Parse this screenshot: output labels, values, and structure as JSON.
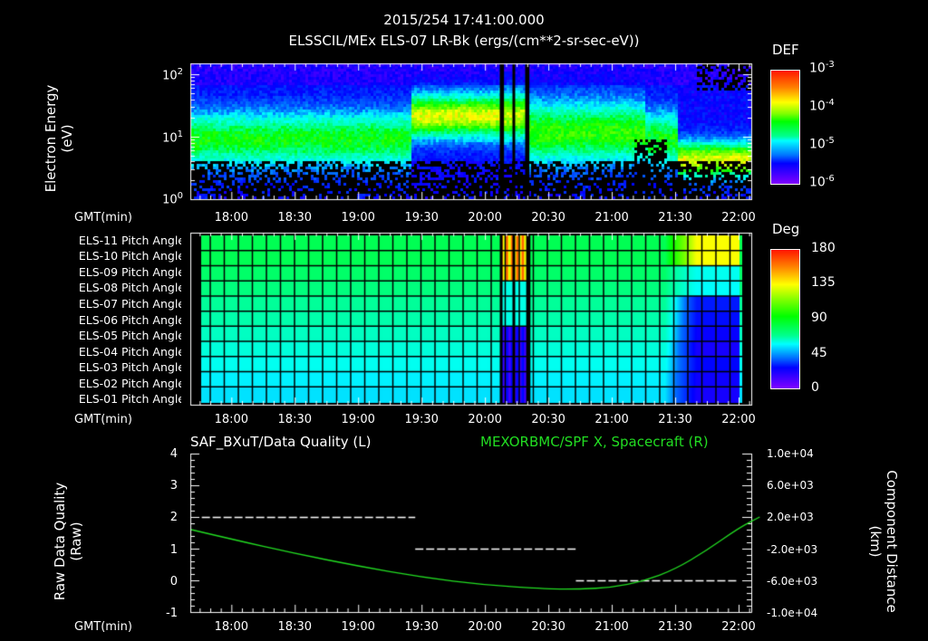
{
  "header": {
    "timestamp": "2015/254 17:41:00.000",
    "subtitle": "ELSSCIL/MEx ELS-07 LR-Bk  (ergs/(cm**2-sr-sec-eV))"
  },
  "time_axis": {
    "label": "GMT(min)",
    "ticks": [
      "18:00",
      "18:30",
      "19:00",
      "19:30",
      "20:00",
      "20:30",
      "21:00",
      "21:30",
      "22:00"
    ],
    "start_min": 1061,
    "end_min": 1326
  },
  "panel1": {
    "ylabel_line1": "Electron Energy",
    "ylabel_line2": "(eV)",
    "yticks": [
      {
        "base": "10",
        "exp": "2"
      },
      {
        "base": "10",
        "exp": "1"
      },
      {
        "base": "10",
        "exp": "0"
      }
    ],
    "colorbar": {
      "title": "DEF",
      "ticks": [
        {
          "base": "10",
          "exp": "-3"
        },
        {
          "base": "10",
          "exp": "-4"
        },
        {
          "base": "10",
          "exp": "-5"
        },
        {
          "base": "10",
          "exp": "-6"
        }
      ]
    }
  },
  "panel2": {
    "rows": [
      "ELS-11 Pitch Angle",
      "ELS-10 Pitch Angle",
      "ELS-09 Pitch Angle",
      "ELS-08 Pitch Angle",
      "ELS-07 Pitch Angle",
      "ELS-06 Pitch Angle",
      "ELS-05 Pitch Angle",
      "ELS-04 Pitch Angle",
      "ELS-03 Pitch Angle",
      "ELS-02 Pitch Angle",
      "ELS-01 Pitch Angle"
    ],
    "colorbar": {
      "title": "Deg",
      "ticks": [
        "180",
        "135",
        "90",
        "45",
        "0"
      ]
    }
  },
  "panel3": {
    "left_title": "SAF_BXuT/Data Quality (L)",
    "right_title": "MEXORBMC/SPF X, Spacecraft (R)",
    "right_title_color": "#22dd22",
    "left_ylabel_line1": "Raw Data Quality",
    "left_ylabel_line2": "(Raw)",
    "right_ylabel_line1": "Component Distance",
    "right_ylabel_line2": "(km)",
    "left_yticks": [
      "4",
      "3",
      "2",
      "1",
      "0",
      "-1"
    ],
    "right_yticks": [
      "1.0e+04",
      "6.0e+03",
      "2.0e+03",
      "-2.0e+03",
      "-6.0e+03",
      "-1.0e+04"
    ]
  },
  "chart_data": [
    {
      "type": "heatmap",
      "title": "ELSSCIL/MEx ELS-07 LR-Bk (ergs/(cm**2-sr-sec-eV))",
      "xlabel": "GMT(min)",
      "ylabel": "Electron Energy (eV)",
      "yscale": "log",
      "ylim": [
        1,
        150
      ],
      "x_ticks": [
        "18:00",
        "18:30",
        "19:00",
        "19:30",
        "20:00",
        "20:30",
        "21:00",
        "21:30",
        "22:00"
      ],
      "colorbar": {
        "label": "DEF",
        "scale": "log",
        "range": [
          1e-06,
          0.001
        ]
      },
      "features": [
        {
          "time": "17:41-19:25",
          "desc": "broad cyan band 5-30 eV, DEF ~1e-5"
        },
        {
          "time": "19:25-20:05",
          "desc": "green band 15-50 eV, DEF ~5e-5"
        },
        {
          "time": "20:08-20:22",
          "desc": "data gaps (black vertical stripes)"
        },
        {
          "time": "20:25-20:50",
          "desc": "green band 15-50 eV"
        },
        {
          "time": "20:50-21:30",
          "desc": "cyan diffuse 5-40 eV"
        },
        {
          "time": "21:45-22:10",
          "desc": "green band 5-15 eV, DEF ~5e-5"
        }
      ]
    },
    {
      "type": "heatmap",
      "title": "Pitch Angle",
      "rows": [
        "ELS-11",
        "ELS-10",
        "ELS-09",
        "ELS-08",
        "ELS-07",
        "ELS-06",
        "ELS-05",
        "ELS-04",
        "ELS-03",
        "ELS-02",
        "ELS-01"
      ],
      "colorbar": {
        "label": "Deg",
        "range": [
          0,
          180
        ],
        "ticks": [
          0,
          45,
          90,
          135,
          180
        ]
      },
      "x_ticks": [
        "18:00",
        "18:30",
        "19:00",
        "19:30",
        "20:00",
        "20:30",
        "21:00",
        "21:30",
        "22:00"
      ],
      "values_typical_deg": [
        100,
        100,
        98,
        96,
        93,
        90,
        86,
        82,
        78,
        74,
        72
      ],
      "features": [
        {
          "time": "20:08-20:22",
          "desc": "rapid variation: upper rows ~150-170 deg, lower rows ~20-40 deg, with gaps"
        },
        {
          "time": "21:40-22:05",
          "desc": "upper rows rising to ~130-150 deg, middle/lower rows dropping to ~20-35 deg"
        }
      ]
    },
    {
      "type": "line",
      "title_left": "SAF_BXuT/Data Quality (L)",
      "title_right": "MEXORBMC/SPF X, Spacecraft (R)",
      "xlabel": "GMT(min)",
      "x_ticks": [
        "18:00",
        "18:30",
        "19:00",
        "19:30",
        "20:00",
        "20:30",
        "21:00",
        "21:30",
        "22:00"
      ],
      "series": [
        {
          "name": "Raw Data Quality (L)",
          "color": "#ffffff",
          "style": "dashed-steps",
          "axis": "left",
          "ylim": [
            -1,
            4
          ],
          "segments": [
            {
              "from": "17:46",
              "to": "19:27",
              "value": 2
            },
            {
              "from": "19:27",
              "to": "20:43",
              "value": 1
            },
            {
              "from": "20:43",
              "to": "22:00",
              "value": 0
            }
          ]
        },
        {
          "name": "SPF X Spacecraft (R)",
          "color": "#22dd22",
          "axis": "right",
          "ylim": [
            -10000,
            10000
          ],
          "x": [
            "17:41",
            "18:00",
            "18:30",
            "19:00",
            "19:30",
            "20:00",
            "20:30",
            "20:45",
            "21:00",
            "21:15",
            "21:30",
            "21:45",
            "22:00",
            "22:10"
          ],
          "values": [
            400,
            -800,
            -2600,
            -4200,
            -5600,
            -6600,
            -7100,
            -7100,
            -6900,
            -6100,
            -4600,
            -2200,
            600,
            2000
          ]
        }
      ]
    }
  ]
}
